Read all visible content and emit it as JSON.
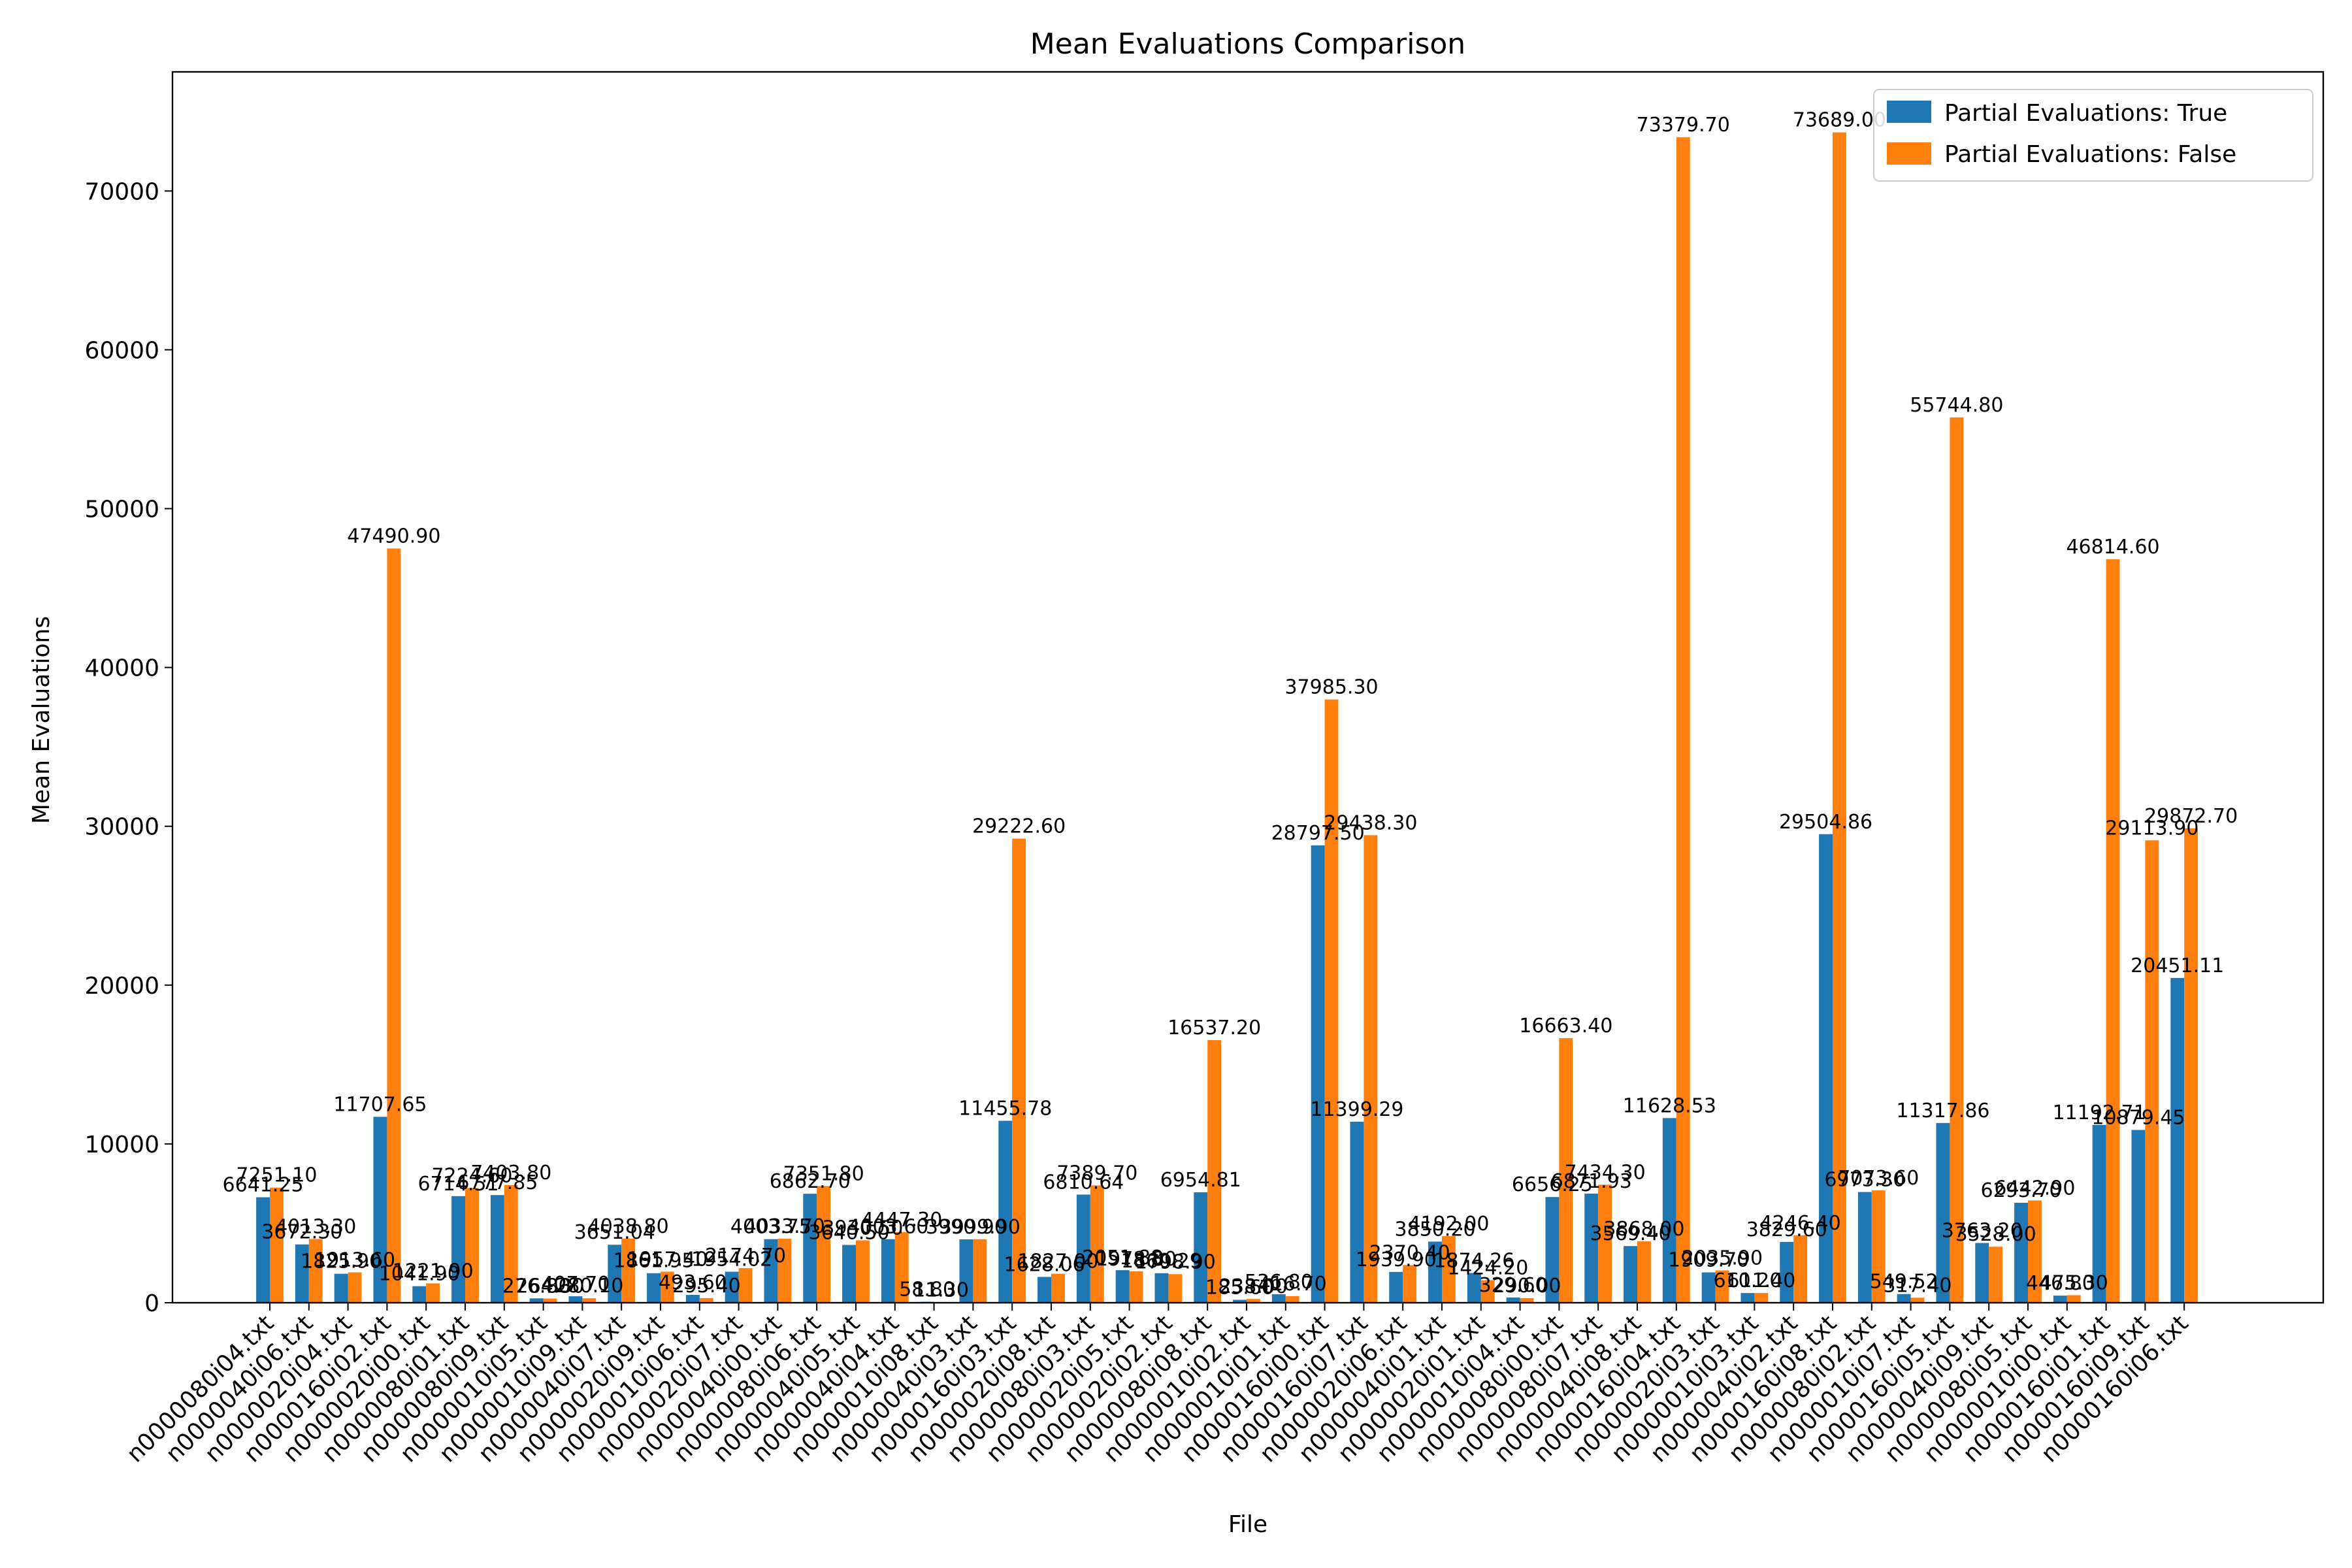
{
  "chart_data": {
    "type": "bar",
    "title": "Mean Evaluations Comparison",
    "xlabel": "File",
    "ylabel": "Mean Evaluations",
    "ylim": [
      0,
      77500
    ],
    "yticks": [
      0,
      10000,
      20000,
      30000,
      40000,
      50000,
      60000,
      70000
    ],
    "ytick_labels": [
      "0",
      "10000",
      "20000",
      "30000",
      "40000",
      "50000",
      "60000",
      "70000"
    ],
    "grid": false,
    "legend_position": "top-right",
    "categories": [
      "n0000080i04.txt",
      "n0000040i06.txt",
      "n0000020i04.txt",
      "n0000160i02.txt",
      "n0000020i00.txt",
      "n0000080i01.txt",
      "n0000080i09.txt",
      "n0000010i05.txt",
      "n0000010i09.txt",
      "n0000040i07.txt",
      "n0000020i09.txt",
      "n0000010i06.txt",
      "n0000020i07.txt",
      "n0000040i00.txt",
      "n0000080i06.txt",
      "n0000040i05.txt",
      "n0000040i04.txt",
      "n0000010i08.txt",
      "n0000040i03.txt",
      "n0000160i03.txt",
      "n0000020i08.txt",
      "n0000080i03.txt",
      "n0000020i05.txt",
      "n0000020i02.txt",
      "n0000080i08.txt",
      "n0000010i02.txt",
      "n0000010i01.txt",
      "n0000160i00.txt",
      "n0000160i07.txt",
      "n0000020i06.txt",
      "n0000040i01.txt",
      "n0000020i01.txt",
      "n0000010i04.txt",
      "n0000080i00.txt",
      "n0000080i07.txt",
      "n0000040i08.txt",
      "n0000160i04.txt",
      "n0000020i03.txt",
      "n0000010i03.txt",
      "n0000040i02.txt",
      "n0000160i08.txt",
      "n0000080i02.txt",
      "n0000010i07.txt",
      "n0000160i05.txt",
      "n0000040i09.txt",
      "n0000080i05.txt",
      "n0000010i00.txt",
      "n0000160i01.txt",
      "n0000160i09.txt",
      "n0000160i06.txt"
    ],
    "series": [
      {
        "name": "Partial Evaluations: True",
        "color": "#1f77b4",
        "values": [
          6641.25,
          3672.3,
          1825.9,
          11707.65,
          1041.9,
          6714.51,
          6777.85,
          276.8,
          407.7,
          3651.04,
          1861.95,
          493.6,
          1954.02,
          4003.75,
          6862.7,
          3640.5,
          4003.6,
          58.8,
          3990.9,
          11455.78,
          1628.06,
          6810.64,
          2051.88,
          1860.29,
          6954.81,
          185.6,
          536.8,
          28797.5,
          11399.29,
          1939.9,
          3850.2,
          1874.26,
          329.6,
          6656.25,
          6871.93,
          3569.4,
          11628.53,
          1909.7,
          610.2,
          3829.6,
          29504.86,
          6973.3,
          549.52,
          11317.86,
          3763.2,
          6293.7,
          446.8,
          11192.71,
          10879.45,
          20451.11
        ],
        "labels": [
          "6641.25",
          "3672.30",
          "1825.90",
          "11707.65",
          "1041.90",
          "6714.51",
          "6777.85",
          "276.80",
          "407.70",
          "3651.04",
          "1861.95",
          "493.60",
          "1954.02",
          "4003.75",
          "6862.70",
          "3640.50",
          "4003.60",
          "58.80",
          "3990.90",
          "11455.78",
          "1628.06",
          "6810.64",
          "2051.88",
          "1860.29",
          "6954.81",
          "185.60",
          "536.80",
          "28797.50",
          "11399.29",
          "1939.90",
          "3850.20",
          "1874.26",
          "329.60",
          "6656.25",
          "6871.93",
          "3569.40",
          "11628.53",
          "1909.70",
          "610.20",
          "3829.60",
          "29504.86",
          "6973.30",
          "549.52",
          "11317.86",
          "3763.20",
          "6293.70",
          "446.80",
          "11192.71",
          "10879.45",
          "20451.11"
        ]
      },
      {
        "name": "Partial Evaluations: False",
        "color": "#ff7f0e",
        "values": [
          7251.1,
          4013.3,
          1913.6,
          47490.9,
          1221.9,
          7224.6,
          7403.8,
          264.3,
          280.1,
          4038.8,
          1957.4,
          295.4,
          2174.7,
          4033.7,
          7351.8,
          3930.5,
          4447.3,
          11.3,
          3999.9,
          29222.6,
          1827.0,
          7389.7,
          1978.8,
          1798.9,
          16537.2,
          238.0,
          416.7,
          37985.3,
          29438.3,
          2370.4,
          4192.0,
          1424.2,
          290.0,
          16663.4,
          7434.3,
          3868.0,
          73379.7,
          2035.9,
          611.4,
          4246.4,
          73689.0,
          7073.6,
          317.4,
          55744.8,
          3528.0,
          6442.9,
          475.3,
          46814.6,
          29113.9,
          29872.7
        ],
        "labels": [
          "7251.10",
          "4013.30",
          "1913.60",
          "47490.90",
          "1221.90",
          "7224.60",
          "7403.80",
          "264.30",
          "280.10",
          "4038.80",
          "1957.40",
          "295.40",
          "2174.70",
          "4033.70",
          "7351.80",
          "3930.50",
          "4447.30",
          "11.30",
          "3999.90",
          "29222.60",
          "1827.00",
          "7389.70",
          "1978.80",
          "1798.90",
          "16537.20",
          "238.00",
          "416.70",
          "37985.30",
          "29438.30",
          "2370.40",
          "4192.00",
          "1424.20",
          "290.00",
          "16663.40",
          "7434.30",
          "3868.00",
          "73379.70",
          "2035.90",
          "611.40",
          "4246.40",
          "73689.00",
          "7073.60",
          "317.40",
          "55744.80",
          "3528.00",
          "6442.90",
          "475.30",
          "46814.60",
          "29113.90",
          "29872.70"
        ]
      }
    ]
  }
}
